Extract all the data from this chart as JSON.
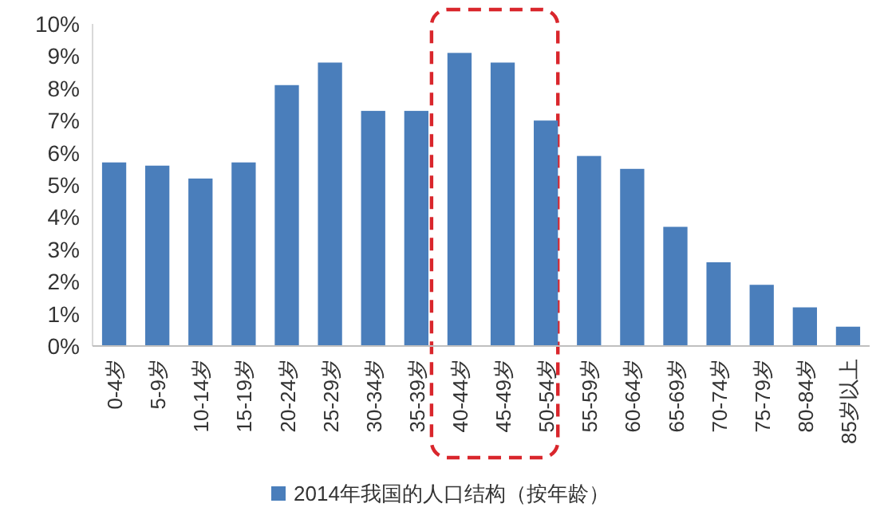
{
  "chart_data": {
    "type": "bar",
    "categories": [
      "0-4岁",
      "5-9岁",
      "10-14岁",
      "15-19岁",
      "20-24岁",
      "25-29岁",
      "30-34岁",
      "35-39岁",
      "40-44岁",
      "45-49岁",
      "50-54岁",
      "55-59岁",
      "60-64岁",
      "65-69岁",
      "70-74岁",
      "75-79岁",
      "80-84岁",
      "85岁以上"
    ],
    "series": [
      {
        "name": "2014年我国的人口结构（按年龄）",
        "color": "#4a7ebb",
        "values": [
          5.7,
          5.6,
          5.2,
          5.7,
          8.1,
          8.8,
          7.3,
          7.3,
          9.1,
          8.8,
          7.0,
          5.9,
          5.5,
          3.7,
          2.6,
          1.9,
          1.2,
          0.6
        ]
      }
    ],
    "ylim": [
      0,
      10
    ],
    "yticks": [
      {
        "value": 0,
        "label": "0%"
      },
      {
        "value": 1,
        "label": "1%"
      },
      {
        "value": 2,
        "label": "2%"
      },
      {
        "value": 3,
        "label": "3%"
      },
      {
        "value": 4,
        "label": "4%"
      },
      {
        "value": 5,
        "label": "5%"
      },
      {
        "value": 6,
        "label": "6%"
      },
      {
        "value": 7,
        "label": "7%"
      },
      {
        "value": 8,
        "label": "8%"
      },
      {
        "value": 9,
        "label": "9%"
      },
      {
        "value": 10,
        "label": "10%"
      }
    ],
    "grid": false,
    "legend": "bottom"
  }
}
